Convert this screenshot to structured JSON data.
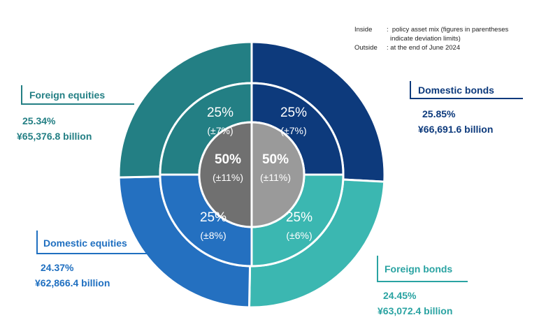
{
  "notes": {
    "inside_key": "Inside",
    "inside_text": "policy asset mix (figures in parentheses",
    "inside_text2": "indicate deviation limits)",
    "outside_key": "Outside",
    "outside_text": "at the end of June 2024"
  },
  "chart_data": {
    "type": "pie",
    "title": "",
    "layout": "nested-donut",
    "inner_core": [
      {
        "side": "left",
        "value": "50%",
        "deviation": "(±11%)",
        "color": "#707070"
      },
      {
        "side": "right",
        "value": "50%",
        "deviation": "(±11%)",
        "color": "#9a9a9a"
      }
    ],
    "segments": [
      {
        "name": "Domestic bonds",
        "policy": "25%",
        "deviation": "(±7%)",
        "outside_pct": "25.85%",
        "outside_amount": "¥66,691.6 billion",
        "share": 25.85,
        "color": "#0d3a7c",
        "label_color": "#0d3a7c"
      },
      {
        "name": "Foreign bonds",
        "policy": "25%",
        "deviation": "(±6%)",
        "outside_pct": "24.45%",
        "outside_amount": "¥63,072.4 billion",
        "share": 24.45,
        "color": "#3bb7b1",
        "label_color": "#2aa3a2"
      },
      {
        "name": "Domestic equities",
        "policy": "25%",
        "deviation": "(±8%)",
        "outside_pct": "24.37%",
        "outside_amount": "¥62,866.4 billion",
        "share": 24.37,
        "color": "#2470c0",
        "label_color": "#1f6fc0"
      },
      {
        "name": "Foreign equities",
        "policy": "25%",
        "deviation": "(±7%)",
        "outside_pct": "25.34%",
        "outside_amount": "¥65,376.8 billion",
        "share": 25.34,
        "color": "#237f84",
        "label_color": "#237f84"
      }
    ]
  }
}
